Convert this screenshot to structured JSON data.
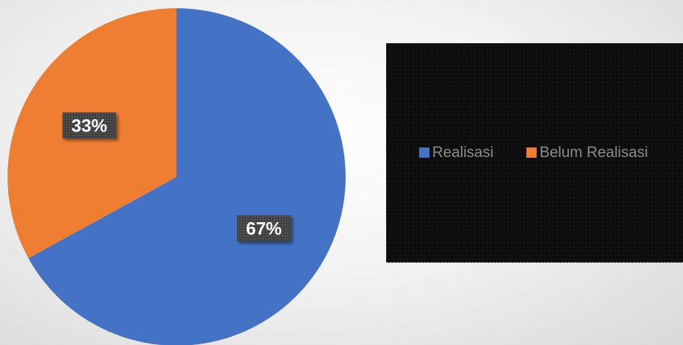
{
  "chart_data": {
    "type": "pie",
    "title": "",
    "series": [
      {
        "name": "",
        "categories": [
          "Realisasi",
          "Belum Realisasi"
        ],
        "values": [
          67,
          33
        ],
        "labels": [
          "67%",
          "33%"
        ]
      }
    ],
    "colors": [
      "#4472C4",
      "#ED7D31"
    ],
    "start_angle_deg": 0,
    "direction": "clockwise",
    "legend": {
      "placement": "right",
      "entries": [
        "Realisasi",
        "Belum Realisasi"
      ]
    }
  }
}
